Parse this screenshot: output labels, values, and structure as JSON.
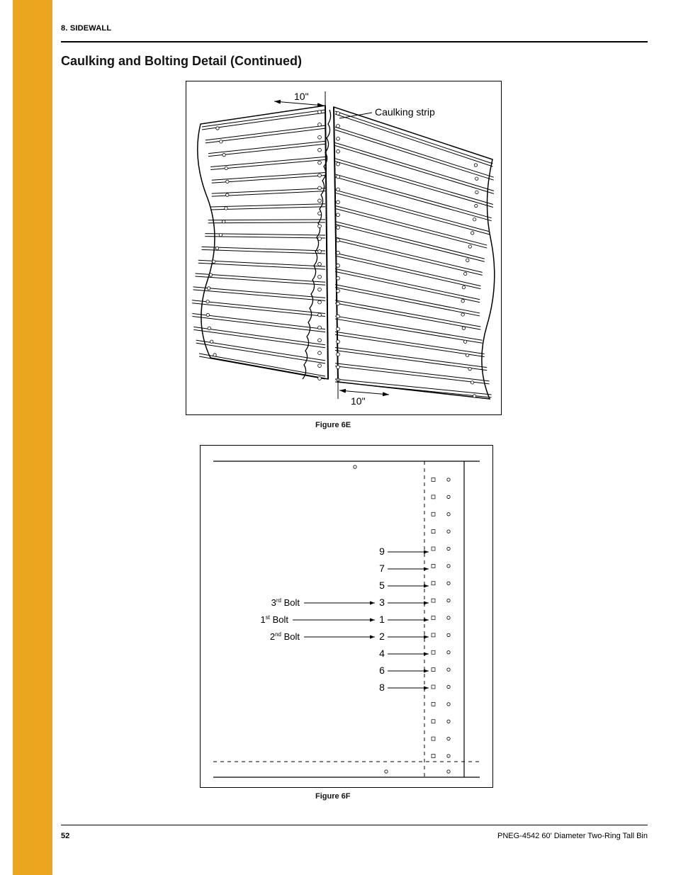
{
  "header_title": "8. SIDEWALL",
  "continued_heading": "Caulking and Bolting Detail (Continued)",
  "footer_page": "52",
  "footer_doc": "PNEG-4542 60' Diameter Two-Ring Tall Bin",
  "fig6e": {
    "caption": "Figure 6E",
    "dim_label_top": "10\"",
    "dim_label_bottom": "10\"",
    "caulking_label": "Caulking strip",
    "corrugation_count": 18,
    "frame_color": "#000000",
    "bg_color": "#ffffff",
    "line_w_corr": 1,
    "line_w_seam": 2,
    "arrow_color": "#000000",
    "hole_count_per_side": 22
  },
  "fig6f": {
    "caption": "Figure 6F",
    "bolt_sequence": [
      "9",
      "7",
      "5",
      "3",
      "1",
      "2",
      "4",
      "6",
      "8"
    ],
    "bolt_labels": [
      {
        "txt": "3",
        "name": "3rd Bolt",
        "sup": "rd"
      },
      {
        "txt": "1",
        "name": "1st Bolt",
        "sup": "st"
      },
      {
        "txt": "2",
        "name": "2nd Bolt",
        "sup": "nd"
      }
    ],
    "rows": 17,
    "frame_color": "#000000",
    "bg_color": "#ffffff",
    "dash_color": "#000000",
    "dash_pattern": "4 4",
    "hole_r": 2.2
  }
}
